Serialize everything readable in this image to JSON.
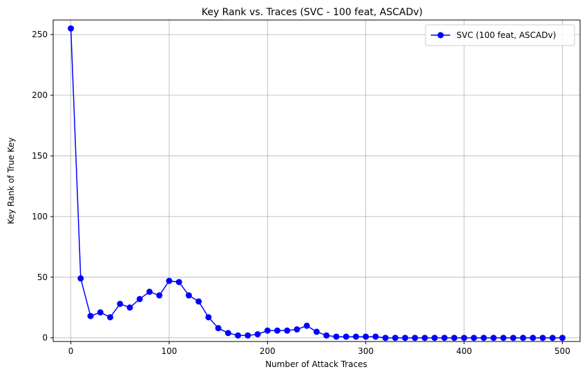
{
  "chart_data": {
    "type": "line",
    "title": "Key Rank vs. Traces (SVC - 100 feat, ASCADv)",
    "xlabel": "Number of Attack Traces",
    "ylabel": "Key Rank of True Key",
    "xlim": [
      -18,
      518
    ],
    "ylim": [
      -3,
      262
    ],
    "xticks": [
      0,
      100,
      200,
      300,
      400,
      500
    ],
    "yticks": [
      0,
      50,
      100,
      150,
      200,
      250
    ],
    "grid": true,
    "legend_position": "top-right",
    "series": [
      {
        "name": "SVC (100 feat, ASCADv)",
        "color": "#0000ff",
        "marker": "circle",
        "x": [
          0,
          10,
          20,
          30,
          40,
          50,
          60,
          70,
          80,
          90,
          100,
          110,
          120,
          130,
          140,
          150,
          160,
          170,
          180,
          190,
          200,
          210,
          220,
          230,
          240,
          250,
          260,
          270,
          280,
          290,
          300,
          310,
          320,
          330,
          340,
          350,
          360,
          370,
          380,
          390,
          400,
          410,
          420,
          430,
          440,
          450,
          460,
          470,
          480,
          490,
          500
        ],
        "y": [
          255,
          49,
          18,
          21,
          17,
          28,
          25,
          32,
          38,
          35,
          47,
          46,
          35,
          30,
          17,
          8,
          4,
          2,
          2,
          3,
          6,
          6,
          6,
          7,
          10,
          5,
          2,
          1,
          1,
          1,
          1,
          1,
          0,
          0,
          0,
          0,
          0,
          0,
          0,
          0,
          0,
          0,
          0,
          0,
          0,
          0,
          0,
          0,
          0,
          0,
          0
        ]
      }
    ]
  }
}
